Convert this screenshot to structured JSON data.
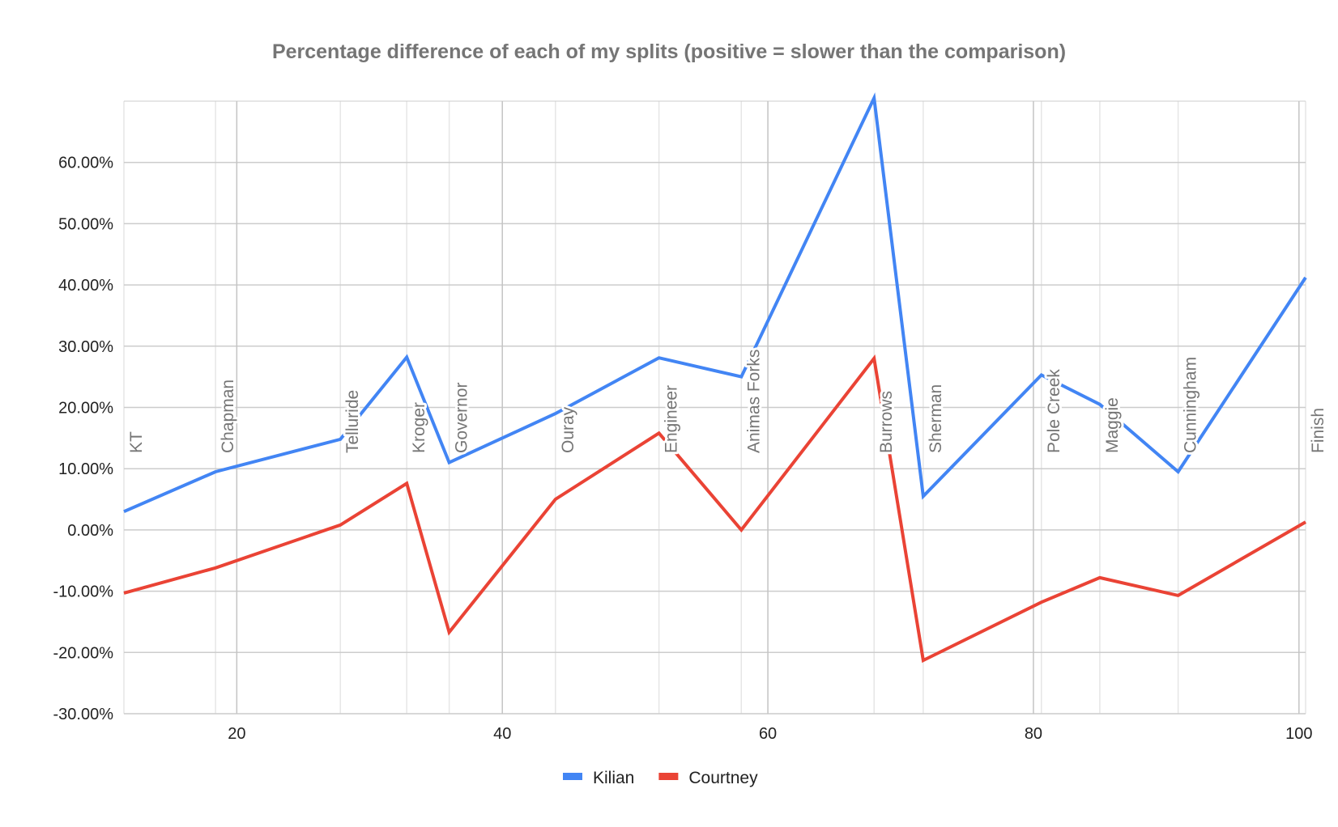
{
  "chart_data": {
    "type": "line",
    "title": "Percentage difference of each of my splits (positive = slower than the comparison)",
    "xlabel": "",
    "ylabel": "",
    "xlim": [
      11.5,
      100.5
    ],
    "ylim": [
      -0.3,
      0.7
    ],
    "x_ticks": [
      20,
      40,
      60,
      80,
      100
    ],
    "x_tick_labels": [
      "20",
      "40",
      "60",
      "80",
      "100"
    ],
    "y_ticks": [
      -0.3,
      -0.2,
      -0.1,
      0,
      0.1,
      0.2,
      0.3,
      0.4,
      0.5,
      0.6
    ],
    "y_tick_labels": [
      "-30.00%",
      "-20.00%",
      "-10.00%",
      "0.00%",
      "10.00%",
      "20.00%",
      "30.00%",
      "40.00%",
      "50.00%",
      "60.00%"
    ],
    "grid": true,
    "legend_position": "bottom",
    "splits": [
      {
        "name": "KT",
        "x": 11.5
      },
      {
        "name": "Chapman",
        "x": 18.4
      },
      {
        "name": "Telluride",
        "x": 27.8
      },
      {
        "name": "Kroger",
        "x": 32.8
      },
      {
        "name": "Governor",
        "x": 36.0
      },
      {
        "name": "Ouray",
        "x": 44.0
      },
      {
        "name": "Engineer",
        "x": 51.8
      },
      {
        "name": "Animas Forks",
        "x": 58.0
      },
      {
        "name": "Burrows",
        "x": 68.0
      },
      {
        "name": "Sherman",
        "x": 71.7
      },
      {
        "name": "Pole Creek",
        "x": 80.6
      },
      {
        "name": "Maggie",
        "x": 85.0
      },
      {
        "name": "Cunningham",
        "x": 90.9
      },
      {
        "name": "Finish",
        "x": 100.5
      }
    ],
    "series": [
      {
        "name": "Kilian",
        "color": "#4285f4",
        "values": [
          0.03,
          0.095,
          0.148,
          0.282,
          0.11,
          0.19,
          0.281,
          0.25,
          0.705,
          0.055,
          0.253,
          0.205,
          0.095,
          0.412
        ]
      },
      {
        "name": "Courtney",
        "color": "#ea4335",
        "values": [
          -0.103,
          -0.062,
          0.008,
          0.076,
          -0.167,
          0.05,
          0.158,
          0.0,
          0.28,
          -0.213,
          -0.118,
          -0.078,
          -0.107,
          0.013
        ]
      }
    ]
  }
}
